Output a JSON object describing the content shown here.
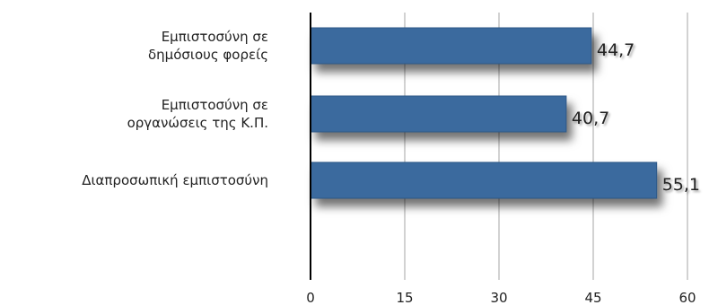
{
  "chart_data": {
    "type": "bar",
    "orientation": "horizontal",
    "categories": [
      [
        "Εμπιστοσύνη σε",
        "δημόσιους φορείς"
      ],
      [
        "Εμπιστοσύνη σε",
        "οργανώσεις της Κ.Π."
      ],
      [
        "Διαπροσωπική εμπιστοσύνη"
      ]
    ],
    "values": [
      44.7,
      40.7,
      55.1
    ],
    "value_labels": [
      "44,7",
      "40,7",
      "55,1"
    ],
    "xlim": [
      0,
      60
    ],
    "ticks": [
      0,
      15,
      30,
      45,
      60
    ],
    "tick_labels": [
      "0",
      "15",
      "30",
      "45",
      "60"
    ],
    "grid": true,
    "legend": "none",
    "colors": {
      "bar": "#3A6A9E",
      "bar_edge": "#2f5887",
      "grid": "#b3b3b3",
      "axis": "#000000",
      "text": "#222222"
    }
  }
}
